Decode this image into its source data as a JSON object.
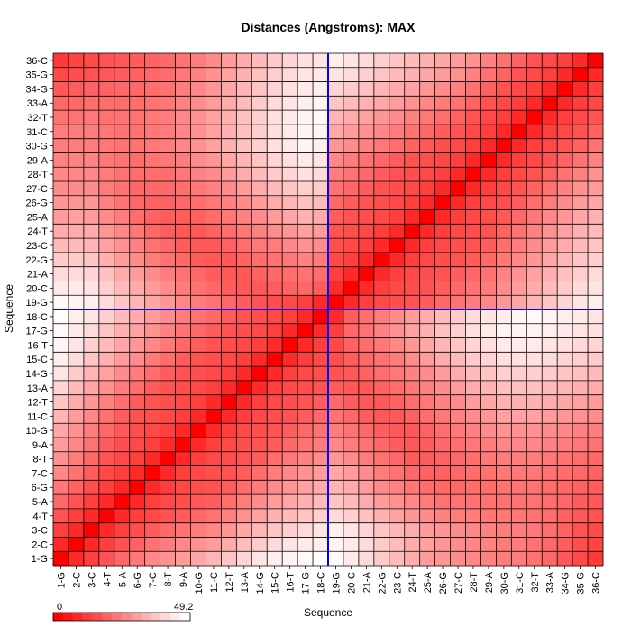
{
  "chart_data": {
    "type": "heatmap",
    "title": "Distances (Angstroms):  MAX",
    "xlabel": "Sequence",
    "ylabel": "Sequence",
    "labels": [
      "1-G",
      "2-C",
      "3-C",
      "4-T",
      "5-A",
      "6-G",
      "7-C",
      "8-T",
      "9-A",
      "10-G",
      "11-C",
      "12-T",
      "13-A",
      "14-G",
      "15-C",
      "16-T",
      "17-G",
      "18-C",
      "19-G",
      "20-C",
      "21-A",
      "22-G",
      "23-C",
      "24-T",
      "25-A",
      "26-G",
      "27-C",
      "28-T",
      "29-A",
      "30-G",
      "31-C",
      "32-T",
      "33-A",
      "34-G",
      "35-G",
      "36-C"
    ],
    "colorscale": {
      "min": 0,
      "max": 49.2,
      "min_label": "0",
      "max_label": "49.2",
      "low_color": "#ff0000",
      "high_color": "#ffffff"
    },
    "values": [
      [
        0,
        8,
        12,
        16,
        20,
        23,
        26,
        28,
        30,
        32,
        35,
        38,
        41,
        44,
        46,
        47,
        48,
        49,
        48,
        45,
        42,
        39,
        36,
        33,
        30,
        29,
        27,
        26,
        25,
        24,
        24,
        22,
        20,
        17,
        14,
        11
      ],
      [
        8,
        0,
        8,
        12,
        16,
        19,
        22,
        24,
        26,
        28,
        30,
        33,
        36,
        39,
        42,
        44,
        45,
        46,
        47,
        45,
        42,
        39,
        36,
        33,
        31,
        29,
        27,
        26,
        25,
        24,
        24,
        22,
        20,
        18,
        15,
        13
      ],
      [
        12,
        8,
        0,
        8,
        12,
        15,
        18,
        20,
        22,
        24,
        26,
        29,
        32,
        35,
        38,
        40,
        42,
        44,
        46,
        44,
        41,
        38,
        35,
        33,
        30,
        29,
        27,
        26,
        25,
        24,
        24,
        23,
        21,
        19,
        16,
        14
      ],
      [
        16,
        12,
        8,
        0,
        8,
        12,
        14,
        16,
        18,
        20,
        22,
        25,
        28,
        31,
        34,
        36,
        38,
        40,
        42,
        40,
        37,
        34,
        31,
        29,
        27,
        25,
        24,
        24,
        23,
        23,
        23,
        22,
        21,
        19,
        17,
        16
      ],
      [
        20,
        16,
        12,
        8,
        0,
        8,
        12,
        14,
        15,
        17,
        18,
        21,
        24,
        27,
        30,
        32,
        34,
        36,
        38,
        36,
        33,
        30,
        28,
        26,
        24,
        22,
        22,
        22,
        22,
        22,
        22,
        22,
        21,
        20,
        18,
        17
      ],
      [
        23,
        19,
        15,
        12,
        8,
        0,
        8,
        12,
        14,
        15,
        16,
        18,
        21,
        24,
        27,
        29,
        31,
        33,
        35,
        33,
        30,
        27,
        25,
        23,
        21,
        20,
        20,
        21,
        21,
        22,
        22,
        22,
        21,
        20,
        19,
        18
      ],
      [
        26,
        22,
        18,
        14,
        12,
        8,
        0,
        8,
        12,
        14,
        15,
        16,
        18,
        21,
        24,
        26,
        28,
        30,
        32,
        30,
        27,
        24,
        22,
        20,
        19,
        19,
        20,
        21,
        22,
        23,
        23,
        23,
        22,
        21,
        20,
        19
      ],
      [
        28,
        24,
        20,
        16,
        14,
        12,
        8,
        0,
        8,
        12,
        14,
        15,
        16,
        18,
        21,
        23,
        25,
        27,
        29,
        27,
        24,
        22,
        20,
        18,
        18,
        19,
        20,
        21,
        23,
        24,
        24,
        24,
        23,
        22,
        21,
        20
      ],
      [
        30,
        26,
        22,
        18,
        15,
        14,
        12,
        8,
        0,
        8,
        12,
        14,
        15,
        16,
        18,
        20,
        22,
        24,
        26,
        24,
        22,
        20,
        18,
        17,
        18,
        20,
        21,
        23,
        24,
        26,
        26,
        26,
        25,
        24,
        23,
        22
      ],
      [
        32,
        28,
        24,
        20,
        17,
        15,
        14,
        12,
        8,
        0,
        8,
        12,
        14,
        15,
        16,
        18,
        20,
        22,
        24,
        22,
        20,
        18,
        17,
        17,
        19,
        21,
        23,
        25,
        27,
        28,
        28,
        28,
        27,
        26,
        25,
        24
      ],
      [
        35,
        30,
        26,
        22,
        18,
        16,
        15,
        14,
        12,
        8,
        0,
        8,
        12,
        14,
        15,
        16,
        18,
        20,
        22,
        20,
        18,
        17,
        17,
        19,
        21,
        23,
        25,
        27,
        29,
        31,
        31,
        31,
        30,
        29,
        28,
        27
      ],
      [
        38,
        33,
        29,
        25,
        21,
        18,
        16,
        15,
        14,
        12,
        8,
        0,
        8,
        12,
        14,
        15,
        16,
        18,
        20,
        18,
        17,
        17,
        19,
        21,
        23,
        25,
        27,
        30,
        32,
        34,
        34,
        34,
        33,
        32,
        31,
        30
      ],
      [
        41,
        36,
        32,
        28,
        24,
        21,
        18,
        16,
        15,
        14,
        12,
        8,
        0,
        8,
        12,
        14,
        15,
        16,
        18,
        17,
        17,
        19,
        21,
        23,
        25,
        27,
        30,
        33,
        35,
        37,
        37,
        37,
        36,
        35,
        34,
        33
      ],
      [
        44,
        39,
        35,
        31,
        27,
        24,
        21,
        18,
        16,
        15,
        14,
        12,
        8,
        0,
        8,
        12,
        14,
        15,
        16,
        17,
        19,
        21,
        23,
        25,
        27,
        30,
        33,
        36,
        38,
        40,
        40,
        40,
        39,
        38,
        37,
        36
      ],
      [
        46,
        42,
        38,
        34,
        30,
        27,
        24,
        21,
        18,
        16,
        15,
        14,
        12,
        8,
        0,
        8,
        12,
        14,
        15,
        18,
        20,
        22,
        24,
        27,
        30,
        33,
        36,
        39,
        41,
        43,
        43,
        43,
        42,
        41,
        40,
        39
      ],
      [
        47,
        44,
        40,
        36,
        32,
        29,
        26,
        23,
        20,
        18,
        16,
        15,
        14,
        12,
        8,
        0,
        8,
        12,
        14,
        19,
        21,
        23,
        26,
        29,
        32,
        35,
        38,
        41,
        43,
        45,
        45,
        45,
        44,
        43,
        42,
        41
      ],
      [
        48,
        45,
        42,
        38,
        34,
        31,
        28,
        25,
        22,
        20,
        18,
        16,
        15,
        14,
        12,
        8,
        0,
        8,
        12,
        20,
        22,
        25,
        28,
        31,
        34,
        37,
        40,
        43,
        45,
        47,
        47,
        47,
        46,
        45,
        44,
        43
      ],
      [
        49,
        46,
        44,
        40,
        36,
        33,
        30,
        27,
        24,
        22,
        20,
        18,
        16,
        15,
        14,
        12,
        8,
        0,
        8,
        18,
        21,
        24,
        27,
        30,
        33,
        36,
        39,
        42,
        44,
        46,
        47,
        48,
        47,
        46,
        45,
        44
      ],
      [
        48,
        47,
        46,
        42,
        38,
        35,
        32,
        29,
        26,
        24,
        22,
        20,
        18,
        16,
        15,
        14,
        12,
        8,
        0,
        8,
        12,
        14,
        15,
        16,
        18,
        20,
        22,
        24,
        26,
        29,
        32,
        35,
        38,
        41,
        44,
        46
      ],
      [
        45,
        45,
        44,
        40,
        36,
        33,
        30,
        27,
        24,
        22,
        20,
        18,
        17,
        17,
        18,
        19,
        20,
        18,
        8,
        0,
        8,
        12,
        14,
        15,
        16,
        18,
        20,
        22,
        24,
        27,
        30,
        33,
        36,
        39,
        42,
        44
      ],
      [
        42,
        42,
        41,
        37,
        33,
        30,
        27,
        24,
        22,
        20,
        18,
        17,
        17,
        19,
        20,
        21,
        22,
        21,
        12,
        8,
        0,
        8,
        12,
        14,
        15,
        16,
        18,
        20,
        22,
        25,
        28,
        31,
        34,
        37,
        40,
        42
      ],
      [
        39,
        39,
        38,
        34,
        30,
        27,
        24,
        22,
        20,
        18,
        17,
        17,
        19,
        21,
        22,
        23,
        25,
        24,
        14,
        12,
        8,
        0,
        8,
        12,
        14,
        15,
        16,
        18,
        20,
        23,
        26,
        29,
        32,
        35,
        38,
        40
      ],
      [
        36,
        36,
        35,
        31,
        28,
        25,
        22,
        20,
        18,
        17,
        17,
        19,
        21,
        23,
        24,
        26,
        28,
        27,
        15,
        14,
        12,
        8,
        0,
        8,
        12,
        14,
        15,
        16,
        18,
        21,
        24,
        27,
        30,
        33,
        36,
        38
      ],
      [
        33,
        33,
        33,
        29,
        26,
        23,
        20,
        18,
        17,
        17,
        19,
        21,
        23,
        25,
        27,
        29,
        31,
        30,
        16,
        15,
        14,
        12,
        8,
        0,
        8,
        12,
        14,
        15,
        16,
        19,
        22,
        25,
        28,
        31,
        34,
        36
      ],
      [
        30,
        31,
        30,
        27,
        24,
        21,
        19,
        18,
        18,
        19,
        21,
        23,
        25,
        27,
        30,
        32,
        34,
        33,
        18,
        16,
        15,
        14,
        12,
        8,
        0,
        8,
        12,
        14,
        15,
        17,
        20,
        23,
        26,
        29,
        32,
        34
      ],
      [
        29,
        29,
        29,
        25,
        22,
        20,
        19,
        19,
        20,
        21,
        23,
        25,
        27,
        30,
        33,
        35,
        37,
        36,
        20,
        18,
        16,
        15,
        14,
        12,
        8,
        0,
        8,
        12,
        14,
        15,
        18,
        21,
        24,
        27,
        30,
        32
      ],
      [
        27,
        27,
        27,
        24,
        22,
        20,
        20,
        20,
        21,
        23,
        25,
        27,
        30,
        33,
        36,
        38,
        40,
        39,
        22,
        20,
        18,
        16,
        15,
        14,
        12,
        8,
        0,
        8,
        12,
        14,
        16,
        19,
        22,
        25,
        28,
        30
      ],
      [
        26,
        26,
        26,
        24,
        22,
        21,
        21,
        21,
        23,
        25,
        27,
        30,
        33,
        36,
        39,
        41,
        43,
        42,
        24,
        22,
        20,
        18,
        16,
        15,
        14,
        12,
        8,
        0,
        8,
        12,
        14,
        16,
        19,
        22,
        25,
        28
      ],
      [
        25,
        25,
        25,
        23,
        22,
        21,
        22,
        23,
        24,
        27,
        29,
        32,
        35,
        38,
        41,
        43,
        45,
        44,
        26,
        24,
        22,
        20,
        18,
        16,
        15,
        14,
        12,
        8,
        0,
        8,
        12,
        14,
        16,
        19,
        22,
        25
      ],
      [
        24,
        24,
        24,
        23,
        22,
        22,
        23,
        24,
        26,
        28,
        31,
        34,
        37,
        40,
        43,
        45,
        47,
        46,
        29,
        27,
        25,
        23,
        21,
        19,
        17,
        15,
        14,
        12,
        8,
        0,
        8,
        12,
        14,
        16,
        19,
        22
      ],
      [
        24,
        24,
        24,
        23,
        22,
        22,
        23,
        24,
        26,
        28,
        31,
        34,
        37,
        40,
        43,
        45,
        47,
        47,
        32,
        30,
        28,
        26,
        24,
        22,
        20,
        18,
        16,
        14,
        12,
        8,
        0,
        8,
        12,
        14,
        16,
        19
      ],
      [
        22,
        22,
        23,
        22,
        22,
        22,
        23,
        24,
        26,
        28,
        31,
        34,
        37,
        40,
        43,
        45,
        47,
        48,
        35,
        33,
        31,
        29,
        27,
        25,
        23,
        21,
        19,
        16,
        14,
        12,
        8,
        0,
        8,
        12,
        14,
        16
      ],
      [
        20,
        20,
        21,
        21,
        21,
        21,
        22,
        23,
        25,
        27,
        30,
        33,
        36,
        39,
        42,
        44,
        46,
        47,
        38,
        36,
        34,
        32,
        30,
        28,
        26,
        24,
        22,
        19,
        16,
        14,
        12,
        8,
        0,
        8,
        12,
        14
      ],
      [
        17,
        18,
        19,
        19,
        20,
        20,
        21,
        22,
        24,
        26,
        29,
        32,
        35,
        38,
        41,
        43,
        45,
        46,
        41,
        39,
        37,
        35,
        33,
        31,
        29,
        27,
        25,
        22,
        19,
        16,
        14,
        12,
        8,
        0,
        8,
        12
      ],
      [
        14,
        15,
        16,
        17,
        18,
        19,
        20,
        21,
        23,
        25,
        28,
        31,
        34,
        37,
        40,
        42,
        44,
        45,
        44,
        42,
        40,
        38,
        36,
        34,
        32,
        30,
        28,
        25,
        22,
        19,
        16,
        14,
        12,
        8,
        0,
        8
      ],
      [
        11,
        13,
        14,
        16,
        17,
        18,
        19,
        20,
        22,
        24,
        27,
        30,
        33,
        36,
        39,
        41,
        43,
        44,
        46,
        44,
        42,
        40,
        38,
        36,
        34,
        32,
        30,
        28,
        25,
        22,
        19,
        16,
        14,
        12,
        8,
        0
      ]
    ],
    "highlight": {
      "row_label": "18-C",
      "col_label": "18-C",
      "line_color": "#0000ff"
    },
    "legend": "bottom-left",
    "grid": true
  }
}
